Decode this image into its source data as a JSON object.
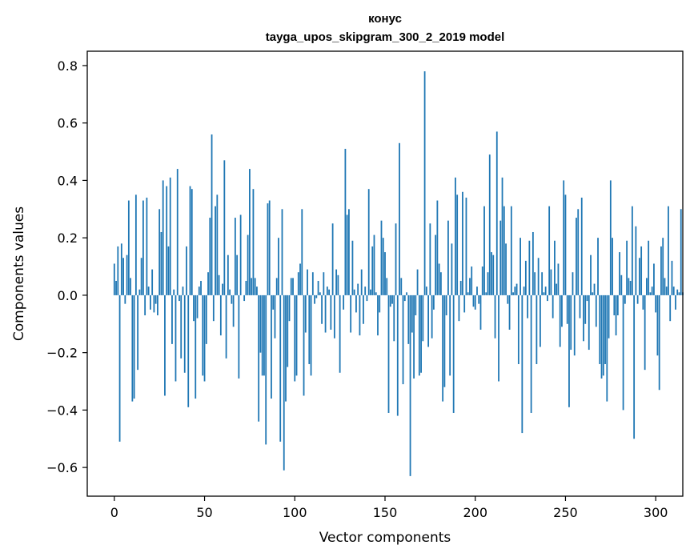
{
  "chart_data": {
    "type": "bar",
    "title": "конус",
    "subtitle": "tayga_upos_skipgram_300_2_2019 model",
    "xlabel": "Vector components",
    "ylabel": "Components values",
    "xlim": [
      -15,
      315
    ],
    "ylim": [
      -0.7,
      0.85
    ],
    "xticks": [
      0,
      50,
      100,
      150,
      200,
      250,
      300
    ],
    "xtick_labels": [
      "0",
      "50",
      "100",
      "150",
      "200",
      "250",
      "300"
    ],
    "yticks": [
      -0.6,
      -0.4,
      -0.2,
      0.0,
      0.2,
      0.4,
      0.6,
      0.8
    ],
    "ytick_labels": [
      "−0.6",
      "−0.4",
      "−0.2",
      "0.0",
      "0.2",
      "0.4",
      "0.6",
      "0.8"
    ],
    "bar_color": "#1f77b4",
    "grid": false,
    "values": [
      0.11,
      0.05,
      0.17,
      -0.51,
      0.18,
      0.13,
      -0.03,
      0.14,
      0.33,
      0.06,
      -0.37,
      -0.36,
      0.35,
      -0.26,
      0.02,
      0.13,
      0.33,
      -0.07,
      0.34,
      0.03,
      -0.05,
      0.09,
      -0.06,
      -0.03,
      -0.07,
      0.3,
      0.22,
      0.4,
      -0.35,
      0.38,
      0.17,
      0.41,
      -0.17,
      0.02,
      -0.3,
      0.44,
      -0.02,
      -0.22,
      0.03,
      -0.27,
      0.17,
      -0.39,
      0.38,
      0.37,
      -0.09,
      -0.36,
      -0.08,
      0.03,
      0.05,
      -0.28,
      -0.3,
      -0.17,
      0.08,
      0.27,
      0.56,
      -0.09,
      0.31,
      0.35,
      0.07,
      -0.14,
      0.04,
      0.47,
      -0.22,
      0.14,
      0.02,
      -0.03,
      -0.11,
      0.27,
      0.14,
      -0.29,
      0.28,
      0.0,
      -0.02,
      0.05,
      0.21,
      0.44,
      0.06,
      0.37,
      0.06,
      0.03,
      -0.44,
      -0.2,
      -0.28,
      -0.28,
      -0.52,
      0.32,
      0.33,
      -0.36,
      -0.05,
      -0.15,
      0.06,
      0.2,
      -0.51,
      0.3,
      -0.61,
      -0.37,
      -0.25,
      -0.09,
      0.06,
      0.06,
      -0.3,
      -0.28,
      0.08,
      0.11,
      0.3,
      -0.35,
      -0.13,
      0.09,
      -0.24,
      -0.28,
      0.08,
      -0.03,
      -0.01,
      0.05,
      0.01,
      -0.1,
      0.08,
      -0.13,
      0.03,
      0.02,
      -0.12,
      0.25,
      -0.15,
      0.09,
      0.07,
      -0.27,
      0.0,
      -0.05,
      0.51,
      0.28,
      0.3,
      -0.13,
      0.19,
      0.02,
      -0.06,
      0.04,
      -0.14,
      0.09,
      -0.1,
      0.03,
      -0.02,
      0.37,
      0.02,
      0.17,
      0.21,
      0.01,
      -0.14,
      -0.06,
      0.26,
      0.2,
      0.15,
      0.06,
      -0.41,
      -0.04,
      -0.03,
      -0.16,
      0.25,
      -0.42,
      0.53,
      0.06,
      -0.31,
      -0.02,
      0.01,
      -0.17,
      -0.63,
      -0.13,
      -0.29,
      -0.07,
      0.09,
      -0.28,
      -0.27,
      -0.16,
      0.78,
      0.03,
      -0.18,
      0.25,
      -0.15,
      -0.05,
      0.21,
      0.33,
      0.11,
      0.08,
      -0.37,
      -0.32,
      -0.07,
      0.26,
      -0.28,
      0.18,
      -0.41,
      0.41,
      0.35,
      -0.09,
      0.05,
      0.36,
      -0.06,
      0.34,
      0.01,
      0.06,
      0.1,
      -0.04,
      -0.05,
      0.03,
      -0.03,
      -0.12,
      0.1,
      0.31,
      0.01,
      0.08,
      0.49,
      0.15,
      0.14,
      -0.15,
      0.57,
      -0.3,
      0.26,
      0.41,
      0.31,
      0.18,
      -0.03,
      -0.12,
      0.31,
      0.01,
      0.03,
      0.04,
      -0.24,
      0.2,
      -0.48,
      0.03,
      0.12,
      -0.08,
      0.19,
      -0.41,
      0.22,
      0.08,
      -0.24,
      0.13,
      -0.18,
      0.08,
      0.01,
      0.03,
      -0.02,
      0.31,
      0.09,
      -0.08,
      0.19,
      0.04,
      0.11,
      -0.18,
      -0.11,
      0.4,
      0.35,
      -0.1,
      -0.39,
      -0.19,
      0.08,
      -0.21,
      0.27,
      0.3,
      -0.08,
      0.34,
      -0.16,
      -0.1,
      -0.02,
      -0.19,
      0.14,
      0.01,
      0.04,
      -0.11,
      0.2,
      -0.24,
      -0.29,
      -0.28,
      -0.24,
      -0.37,
      -0.15,
      0.4,
      0.2,
      -0.07,
      -0.14,
      -0.07,
      0.15,
      0.07,
      -0.4,
      -0.03,
      0.19,
      0.06,
      0.05,
      0.31,
      -0.5,
      0.24,
      -0.03,
      0.13,
      0.17,
      -0.05,
      -0.26,
      0.06,
      0.19,
      0.01,
      0.03,
      0.11,
      -0.06,
      -0.21,
      -0.33,
      0.17,
      0.2,
      0.06,
      0.03,
      0.31,
      -0.09,
      0.12,
      0.03,
      -0.05,
      0.02,
      0.01,
      0.3,
      0.01
    ]
  }
}
